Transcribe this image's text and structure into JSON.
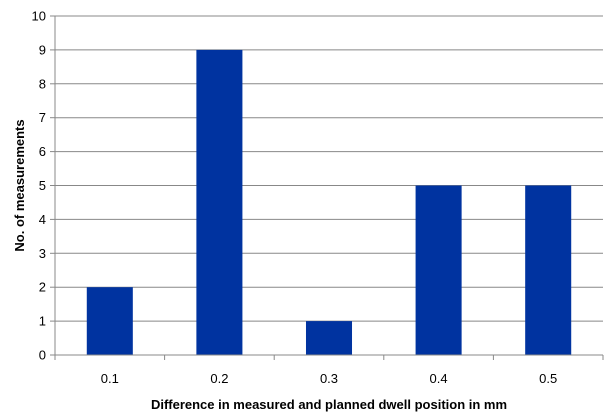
{
  "chart_data": {
    "type": "bar",
    "title": "",
    "xlabel": "Difference in measured and planned dwell position in mm",
    "ylabel": "No. of measurements",
    "categories": [
      "0.1",
      "0.2",
      "0.3",
      "0.4",
      "0.5"
    ],
    "values": [
      2,
      9,
      1,
      5,
      5
    ],
    "ylim": [
      0,
      10
    ],
    "yticks": [
      0,
      1,
      2,
      3,
      4,
      5,
      6,
      7,
      8,
      9,
      10
    ],
    "grid": "horizontal",
    "legend": "none",
    "colors": {
      "bar": "#0033A0",
      "grid": "#888888",
      "axis": "#888888"
    }
  }
}
